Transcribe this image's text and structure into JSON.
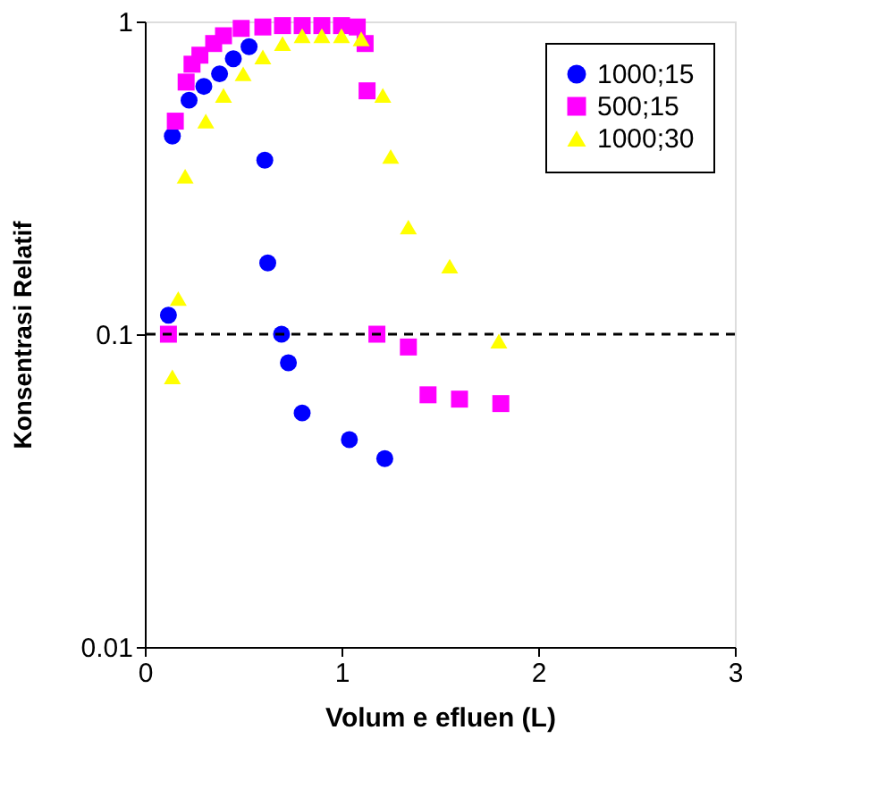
{
  "chart_data": {
    "type": "scatter",
    "xlabel": "Volum e efluen (L)",
    "ylabel": "Konsentrasi Relatif",
    "log": "y",
    "xlim": [
      0,
      3
    ],
    "xticks": [
      0,
      1,
      2,
      3
    ],
    "ylim": [
      0.01,
      1
    ],
    "yticks": [
      0.01,
      0.1,
      1
    ],
    "grid": false,
    "legend": "top right",
    "series": [
      {
        "name": "1000;15",
        "color": "#0000ff",
        "marker": "circle",
        "x": [
          0.12,
          0.14,
          0.225,
          0.3,
          0.38,
          0.45,
          0.53,
          0.61,
          0.625,
          0.695,
          0.73,
          0.8,
          1.04,
          1.22
        ],
        "values": [
          0.115,
          0.43,
          0.56,
          0.62,
          0.68,
          0.76,
          0.83,
          0.36,
          0.169,
          0.1,
          0.081,
          0.056,
          0.046,
          0.04
        ]
      },
      {
        "name": "500;15",
        "color": "#ff00ff",
        "marker": "square",
        "x": [
          0.12,
          0.155,
          0.21,
          0.24,
          0.28,
          0.35,
          0.4,
          0.49,
          0.6,
          0.7,
          0.8,
          0.9,
          1.0,
          1.08,
          1.12,
          1.13,
          1.18,
          1.34,
          1.44,
          1.6,
          1.81
        ],
        "values": [
          0.1,
          0.48,
          0.64,
          0.73,
          0.78,
          0.85,
          0.9,
          0.95,
          0.96,
          0.97,
          0.97,
          0.97,
          0.97,
          0.96,
          0.85,
          0.6,
          0.1,
          0.091,
          0.064,
          0.062,
          0.06
        ]
      },
      {
        "name": "1000;30",
        "color": "#ffff00",
        "marker": "triangle",
        "x": [
          0.14,
          0.17,
          0.205,
          0.31,
          0.4,
          0.5,
          0.6,
          0.7,
          0.8,
          0.9,
          1.0,
          1.1,
          1.21,
          1.25,
          1.34,
          1.55,
          1.8
        ],
        "values": [
          0.073,
          0.13,
          0.32,
          0.48,
          0.58,
          0.68,
          0.77,
          0.85,
          0.9,
          0.9,
          0.9,
          0.88,
          0.58,
          0.37,
          0.22,
          0.165,
          0.095
        ]
      }
    ],
    "ref_lines": [
      {
        "axis": "y",
        "value": 0.1,
        "label": null,
        "color": "#000000",
        "line_style": "dashed"
      }
    ]
  }
}
